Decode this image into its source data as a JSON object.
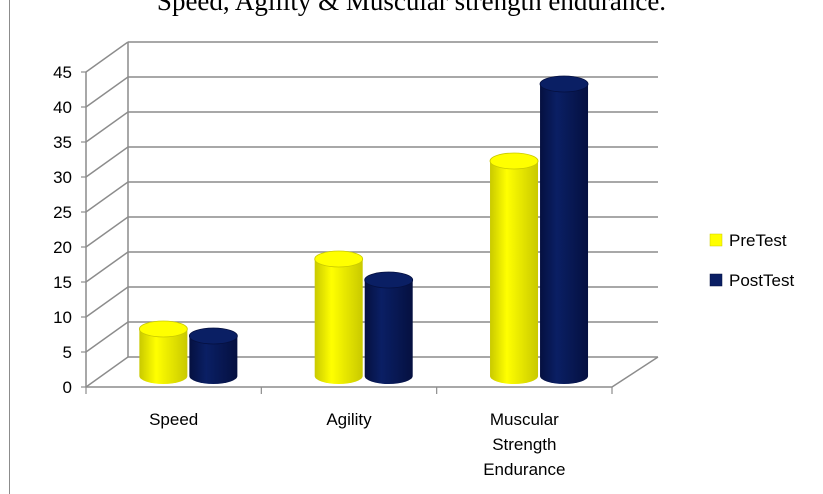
{
  "chart_data": {
    "type": "bar",
    "title": "Speed, Agility & Muscular strength endurance.",
    "categories": [
      [
        "Speed"
      ],
      [
        "Agility"
      ],
      [
        "Muscular",
        "Strength",
        "Endurance"
      ]
    ],
    "series": [
      {
        "name": "PreTest",
        "values": [
          7,
          17,
          31
        ],
        "color": "#ffff00",
        "shade": "#c9c900"
      },
      {
        "name": "PostTest",
        "values": [
          6,
          14,
          42
        ],
        "color": "#0a1f64",
        "shade": "#051040"
      }
    ],
    "ylim": [
      0,
      45
    ],
    "yticks": [
      0,
      5,
      10,
      15,
      20,
      25,
      30,
      35,
      40,
      45
    ],
    "grid": true,
    "legend": "right",
    "style": "3d-cylinder"
  }
}
